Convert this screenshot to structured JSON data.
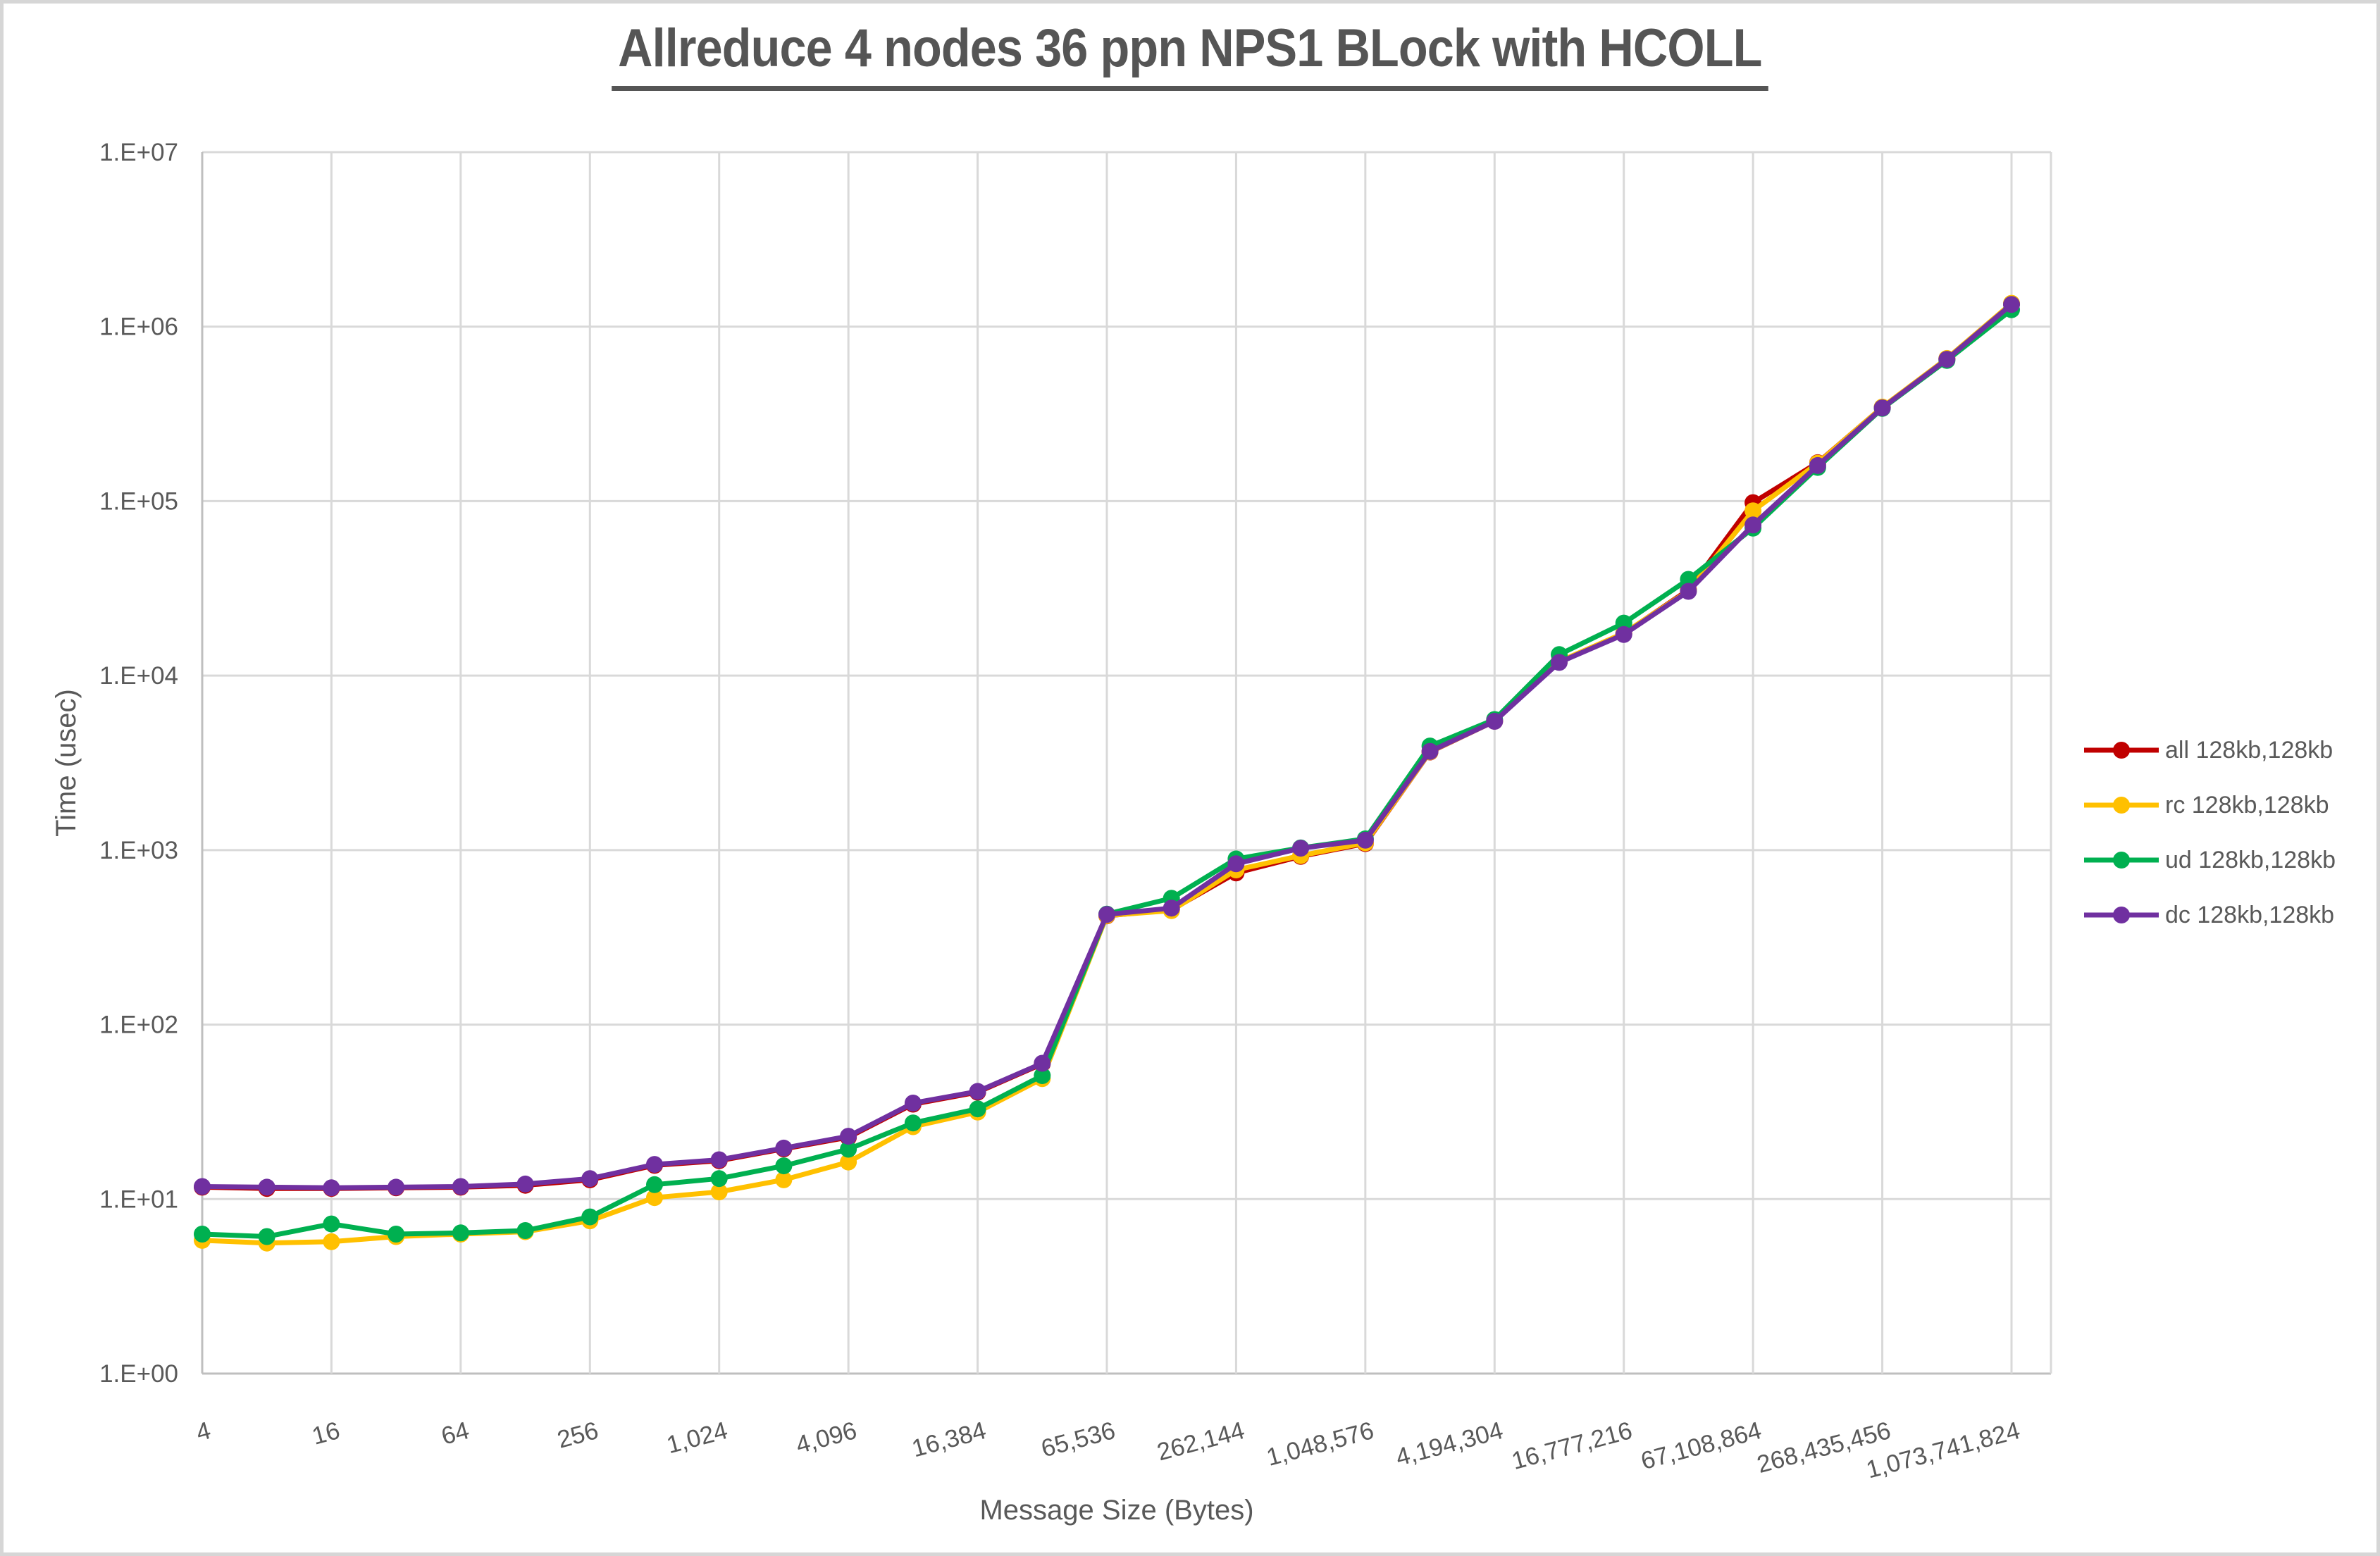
{
  "title": "Allreduce 4 nodes 36 ppn NPS1 BLock with HCOLL",
  "axes": {
    "x_label": "Message Size (Bytes)",
    "y_label": "Time (usec)",
    "x_tick_labels": [
      "4",
      "16",
      "64",
      "256",
      "1,024",
      "4,096",
      "16,384",
      "65,536",
      "262,144",
      "1,048,576",
      "4,194,304",
      "16,777,216",
      "67,108,864",
      "268,435,456",
      "1,073,741,824"
    ],
    "y_tick_labels": [
      "1.E+00",
      "1.E+01",
      "1.E+02",
      "1.E+03",
      "1.E+04",
      "1.E+05",
      "1.E+06",
      "1.E+07"
    ]
  },
  "colors": {
    "gridline": "#D9D9D9",
    "axis_line": "#BFBFBF",
    "tick_text": "#595959",
    "title_text": "#555555",
    "border": "#D6D6D6"
  },
  "chart_data": {
    "type": "line",
    "title": "Allreduce 4 nodes 36 ppn NPS1 BLock with HCOLL",
    "xlabel": "Message Size (Bytes)",
    "ylabel": "Time (usec)",
    "x_scale": "log2",
    "y_scale": "log10",
    "xlim": [
      4,
      1073741824
    ],
    "ylim": [
      1,
      10000000
    ],
    "grid": true,
    "legend_position": "right",
    "x": [
      4,
      8,
      16,
      32,
      64,
      128,
      256,
      512,
      1024,
      2048,
      4096,
      8192,
      16384,
      32768,
      65536,
      131072,
      262144,
      524288,
      1048576,
      2097152,
      4194304,
      8388608,
      16777216,
      33554432,
      67108864,
      134217728,
      268435456,
      536870912,
      1073741824
    ],
    "x_tick_values": [
      4,
      16,
      64,
      256,
      1024,
      4096,
      16384,
      65536,
      262144,
      1048576,
      4194304,
      16777216,
      67108864,
      268435456,
      1073741824
    ],
    "series": [
      {
        "name": "all",
        "label": "all 128kb,128kb",
        "color": "#C00000",
        "values": [
          11.7,
          11.5,
          11.5,
          11.6,
          11.7,
          12.0,
          12.9,
          15.6,
          16.6,
          19.4,
          22.6,
          35.0,
          41.0,
          59.5,
          420,
          455,
          740,
          920,
          1090,
          3650,
          5480,
          12000,
          17400,
          31000,
          98000,
          166000,
          345000,
          655000,
          1345000
        ]
      },
      {
        "name": "rc",
        "label": "rc 128kb,128kb",
        "color": "#FFC000",
        "values": [
          5.8,
          5.6,
          5.7,
          6.1,
          6.3,
          6.5,
          7.5,
          10.2,
          11.0,
          12.9,
          16.3,
          26.0,
          31.5,
          49,
          422,
          450,
          770,
          930,
          1100,
          3660,
          5490,
          12050,
          17500,
          30600,
          88000,
          165000,
          346000,
          657000,
          1360000
        ]
      },
      {
        "name": "ud",
        "label": "ud 128kb,128kb",
        "color": "#00B050",
        "values": [
          6.3,
          6.1,
          7.2,
          6.3,
          6.4,
          6.6,
          7.9,
          12.1,
          13.1,
          15.5,
          19.3,
          27.3,
          32.9,
          51,
          430,
          530,
          890,
          1030,
          1160,
          3950,
          5600,
          13200,
          20000,
          35600,
          70000,
          156000,
          340000,
          640000,
          1250000
        ]
      },
      {
        "name": "dc",
        "label": "dc 128kb,128kb",
        "color": "#7030A0",
        "values": [
          11.8,
          11.7,
          11.6,
          11.7,
          11.8,
          12.2,
          13.1,
          15.8,
          16.8,
          19.6,
          22.9,
          35.5,
          41.4,
          60,
          428,
          465,
          835,
          1025,
          1140,
          3680,
          5470,
          11900,
          17200,
          30400,
          73000,
          160000,
          342000,
          650000,
          1340000
        ]
      }
    ]
  }
}
